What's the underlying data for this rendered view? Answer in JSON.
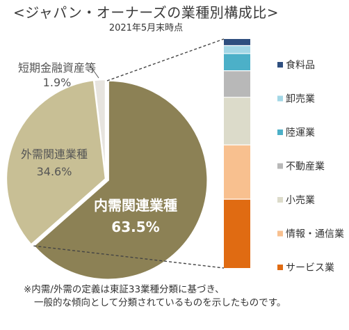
{
  "title": "<ジャパン・オーナーズの業種別構成比>",
  "subtitle": "2021年5月末時点",
  "footnote": [
    "※内需/外需の定義は東証33業種分類に基づき、",
    "一般的な傾向として分類されているものを示したものです。"
  ],
  "chart_data": [
    {
      "type": "pie",
      "categories": [
        "内需関連業種",
        "外需関連業種",
        "短期金融資産等"
      ],
      "values": [
        63.5,
        34.6,
        1.9
      ],
      "value_labels": [
        "63.5%",
        "34.6%",
        "1.9%"
      ],
      "colors": [
        "#8c8155",
        "#c8bf95",
        "#e7e4df"
      ],
      "exploded": "内需関連業種"
    },
    {
      "type": "bar",
      "stacked": true,
      "title": "",
      "categories": [
        "内需関連業種"
      ],
      "series": [
        {
          "name": "サービス業",
          "value": 26.0,
          "color": "#e06b12"
        },
        {
          "name": "情報・通信業",
          "value": 20.5,
          "color": "#f8c08f"
        },
        {
          "name": "小売業",
          "value": 18.0,
          "color": "#dcdbca"
        },
        {
          "name": "不動産業",
          "value": 10.0,
          "color": "#b8b8b8"
        },
        {
          "name": "陸運業",
          "value": 6.5,
          "color": "#4cb0c8"
        },
        {
          "name": "卸売業",
          "value": 3.0,
          "color": "#a3d7e6"
        },
        {
          "name": "食料品",
          "value": 2.5,
          "color": "#2f4f7f"
        }
      ],
      "legend": "right"
    }
  ]
}
